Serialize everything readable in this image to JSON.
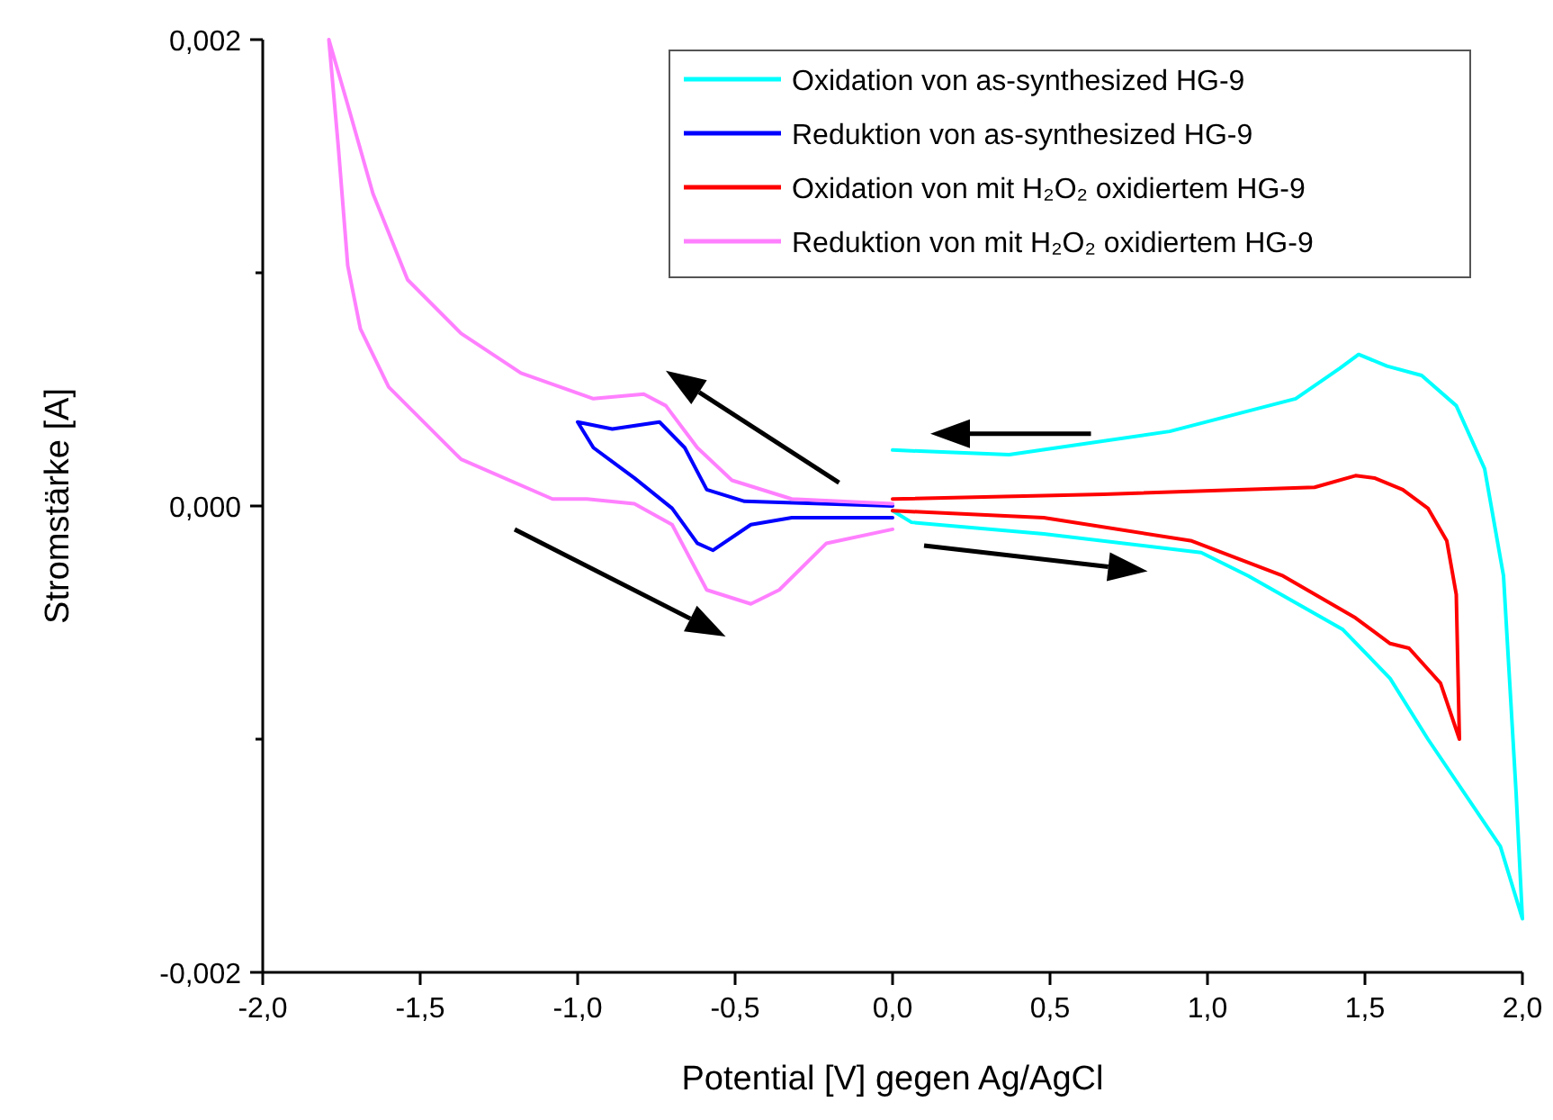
{
  "chart_data": {
    "type": "line",
    "xlabel": "Potential [V] gegen Ag/AgCl",
    "ylabel": "Stromstärke [A]",
    "xlim": [
      -2,
      2
    ],
    "ylim": [
      -0.002,
      0.002
    ],
    "xticks": [
      {
        "value": -2,
        "label": "-2,0"
      },
      {
        "value": -1.5,
        "label": "-1,5"
      },
      {
        "value": -1,
        "label": "-1,0"
      },
      {
        "value": -0.5,
        "label": "-0,5"
      },
      {
        "value": 0,
        "label": "0,0"
      },
      {
        "value": 0.5,
        "label": "0,5"
      },
      {
        "value": 1,
        "label": "1,0"
      },
      {
        "value": 1.5,
        "label": "1,5"
      },
      {
        "value": 2,
        "label": "2,0"
      }
    ],
    "yticks": [
      {
        "value": -0.002,
        "label": "-0,002"
      },
      {
        "value": -0.001,
        "label": null
      },
      {
        "value": 0,
        "label": "0,000"
      },
      {
        "value": 0.001,
        "label": null
      },
      {
        "value": 0.002,
        "label": "0,002"
      }
    ],
    "grid": false,
    "legend": "top right",
    "marker": "none",
    "line_style": "solid",
    "series": [
      {
        "name": "Oxidation von as-synthesized HG-9",
        "color": "#00ffff",
        "x": [
          0,
          0.37,
          0.88,
          1.28,
          1.42,
          1.48,
          1.57,
          1.68,
          1.79,
          1.88,
          1.94,
          1.98,
          2.0,
          1.93,
          1.7,
          1.58,
          1.43,
          1.13,
          0.98,
          0.48,
          0.06,
          0
        ],
        "values": [
          0.00024,
          0.00022,
          0.00032,
          0.00046,
          0.00059,
          0.00065,
          0.0006,
          0.00056,
          0.00043,
          0.00016,
          -0.0003,
          -0.00123,
          -0.00177,
          -0.00146,
          -0.001,
          -0.00074,
          -0.00053,
          -0.0003,
          -0.0002,
          -0.00012,
          -7e-05,
          -2e-05
        ]
      },
      {
        "name": "Reduktion von as-synthesized HG-9",
        "color": "#0000ff",
        "x": [
          0,
          -0.32,
          -0.45,
          -0.57,
          -0.62,
          -0.7,
          -0.82,
          -0.95,
          -1.0,
          -0.89,
          -0.74,
          -0.66,
          -0.59,
          -0.47,
          0
        ],
        "values": [
          -5e-05,
          -5e-05,
          -8e-05,
          -0.00019,
          -0.00016,
          -1e-05,
          0.00012,
          0.00025,
          0.00036,
          0.00033,
          0.00036,
          0.00025,
          7e-05,
          2e-05,
          0
        ]
      },
      {
        "name": "Oxidation von mit H₂O₂ oxidiertem HG-9",
        "color": "#ff0000",
        "x": [
          0,
          0.67,
          1.34,
          1.47,
          1.53,
          1.62,
          1.7,
          1.76,
          1.79,
          1.8,
          1.74,
          1.64,
          1.58,
          1.47,
          1.24,
          0.95,
          0.48,
          0
        ],
        "values": [
          3e-05,
          5e-05,
          8e-05,
          0.00013,
          0.00012,
          7e-05,
          -1e-05,
          -0.00015,
          -0.00038,
          -0.001,
          -0.00076,
          -0.00061,
          -0.00059,
          -0.00048,
          -0.0003,
          -0.00015,
          -5e-05,
          -2e-05
        ]
      },
      {
        "name": "Reduktion von mit H₂O₂ oxidiertem HG-9",
        "color": "#ff80ff",
        "x": [
          0,
          -0.21,
          -0.36,
          -0.45,
          -0.59,
          -0.7,
          -0.82,
          -0.97,
          -1.08,
          -1.37,
          -1.6,
          -1.69,
          -1.73,
          -1.76,
          -1.79,
          -1.73,
          -1.65,
          -1.54,
          -1.37,
          -1.18,
          -0.95,
          -0.79,
          -0.72,
          -0.62,
          -0.51,
          -0.32,
          0
        ],
        "values": [
          -0.0001,
          -0.00016,
          -0.00036,
          -0.00042,
          -0.00036,
          -8e-05,
          1e-05,
          3e-05,
          3e-05,
          0.0002,
          0.00051,
          0.00076,
          0.00103,
          0.00154,
          0.002,
          0.00172,
          0.00134,
          0.00097,
          0.00074,
          0.00057,
          0.00046,
          0.00048,
          0.00043,
          0.00025,
          0.00011,
          3e-05,
          1e-05
        ]
      }
    ]
  }
}
